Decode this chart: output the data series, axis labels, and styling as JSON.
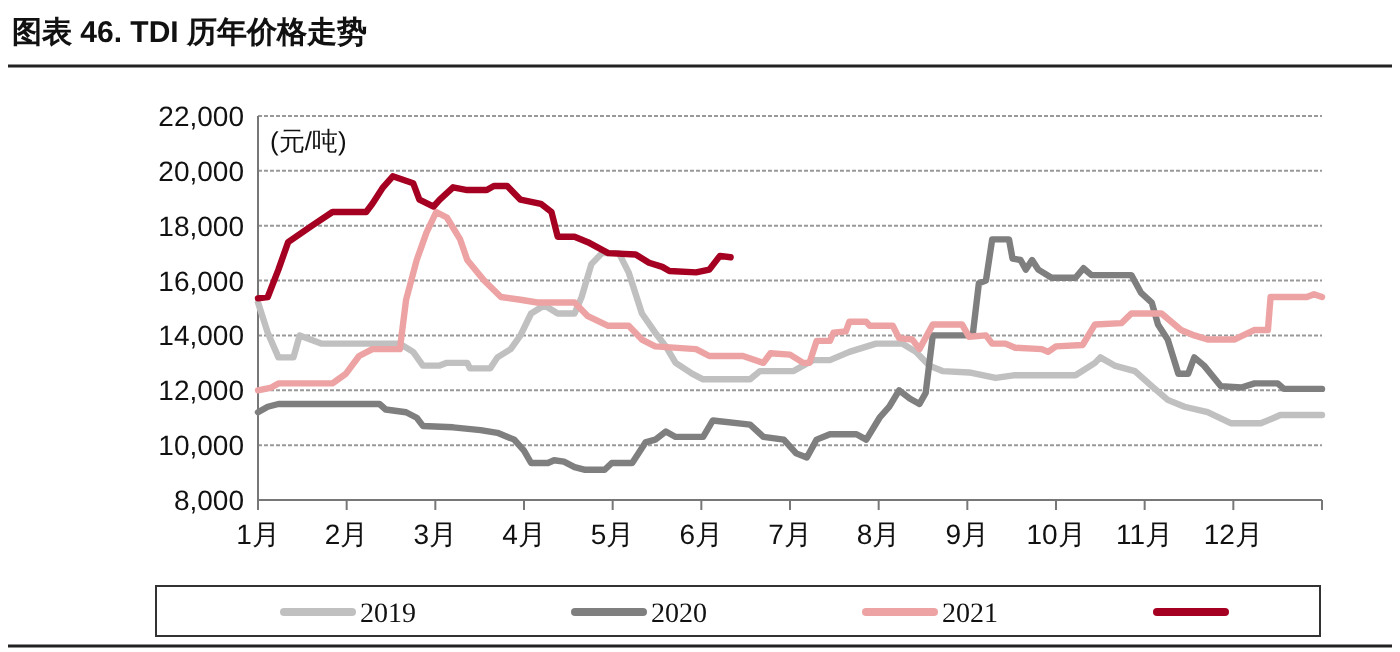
{
  "chart_data": {
    "type": "line",
    "title": "图表 46. TDI 历年价格走势",
    "ylabel": "(元/吨)",
    "xlim": [
      1,
      13
    ],
    "xticks": [
      {
        "value": 1,
        "label": "1月"
      },
      {
        "value": 2,
        "label": "2月"
      },
      {
        "value": 3,
        "label": "3月"
      },
      {
        "value": 4,
        "label": "4月"
      },
      {
        "value": 5,
        "label": "5月"
      },
      {
        "value": 6,
        "label": "6月"
      },
      {
        "value": 7,
        "label": "7月"
      },
      {
        "value": 8,
        "label": "8月"
      },
      {
        "value": 9,
        "label": "9月"
      },
      {
        "value": 10,
        "label": "10月"
      },
      {
        "value": 11,
        "label": "11月"
      },
      {
        "value": 12,
        "label": "12月"
      },
      {
        "value": 13,
        "label": null
      }
    ],
    "ylim": [
      8000,
      22000
    ],
    "yticks": [
      {
        "value": 8000,
        "label": "8,000"
      },
      {
        "value": 10000,
        "label": "10,000"
      },
      {
        "value": 12000,
        "label": "12,000"
      },
      {
        "value": 14000,
        "label": "14,000"
      },
      {
        "value": 16000,
        "label": "16,000"
      },
      {
        "value": 18000,
        "label": "18,000"
      },
      {
        "value": 20000,
        "label": "20,000"
      },
      {
        "value": 22000,
        "label": "22,000"
      }
    ],
    "grid": "y",
    "legend": "bottom",
    "marker": "none",
    "line_style": "solid",
    "series": [
      {
        "name": "2019",
        "color": "#c0c0c0",
        "x": [
          1.0,
          1.11,
          1.23,
          1.4,
          1.47,
          1.72,
          2.6,
          2.75,
          2.86,
          3.05,
          3.13,
          3.36,
          3.39,
          3.62,
          3.7,
          3.85,
          3.96,
          4.08,
          4.23,
          4.38,
          4.57,
          4.65,
          4.76,
          4.88,
          5.07,
          5.18,
          5.33,
          5.48,
          5.6,
          5.71,
          5.9,
          6.02,
          6.55,
          6.66,
          7.04,
          7.26,
          7.45,
          7.67,
          7.97,
          8.27,
          8.42,
          8.57,
          8.72,
          9.02,
          9.32,
          9.54,
          10.22,
          10.44,
          10.5,
          10.66,
          10.89,
          11.08,
          11.26,
          11.45,
          11.71,
          11.97,
          12.31,
          12.46,
          12.53,
          13.0
        ],
        "values": [
          15200,
          14100,
          13200,
          13200,
          14000,
          13700,
          13700,
          13400,
          12900,
          12900,
          13000,
          13000,
          12800,
          12800,
          13200,
          13500,
          14000,
          14800,
          15100,
          14800,
          14800,
          15400,
          16600,
          17000,
          17000,
          16300,
          14800,
          14100,
          13600,
          13000,
          12600,
          12400,
          12400,
          12700,
          12700,
          13100,
          13100,
          13400,
          13700,
          13700,
          13400,
          12900,
          12700,
          12650,
          12450,
          12550,
          12550,
          13000,
          13200,
          12900,
          12700,
          12150,
          11650,
          11400,
          11200,
          10800,
          10800,
          11000,
          11100,
          11100
        ]
      },
      {
        "name": "2020",
        "color": "#7f7f7f",
        "x": [
          1.0,
          1.11,
          1.23,
          2.37,
          2.44,
          2.67,
          2.79,
          2.86,
          3.2,
          3.51,
          3.7,
          3.89,
          4.0,
          4.08,
          4.27,
          4.34,
          4.45,
          4.57,
          4.69,
          4.91,
          4.99,
          5.22,
          5.37,
          5.48,
          5.6,
          5.71,
          6.02,
          6.13,
          6.55,
          6.7,
          6.93,
          7.07,
          7.19,
          7.3,
          7.45,
          7.75,
          7.86,
          8.01,
          8.12,
          8.23,
          8.35,
          8.46,
          8.53,
          8.61,
          9.06,
          9.13,
          9.21,
          9.28,
          9.47,
          9.51,
          9.6,
          9.66,
          9.73,
          9.8,
          9.95,
          10.22,
          10.31,
          10.4,
          10.85,
          10.96,
          11.08,
          11.15,
          11.26,
          11.38,
          11.49,
          11.56,
          11.67,
          11.86,
          12.09,
          12.24,
          12.5,
          12.57,
          13.0
        ],
        "values": [
          11200,
          11400,
          11500,
          11500,
          11300,
          11200,
          11000,
          10700,
          10650,
          10550,
          10450,
          10200,
          9800,
          9350,
          9350,
          9450,
          9400,
          9200,
          9100,
          9100,
          9350,
          9350,
          10100,
          10200,
          10500,
          10300,
          10300,
          10900,
          10750,
          10300,
          10200,
          9700,
          9550,
          10200,
          10400,
          10400,
          10200,
          11000,
          11400,
          12000,
          11700,
          11500,
          11900,
          14000,
          14000,
          15900,
          16000,
          17500,
          17500,
          16800,
          16750,
          16400,
          16750,
          16400,
          16100,
          16100,
          16450,
          16200,
          16200,
          15550,
          15200,
          14400,
          13850,
          12600,
          12600,
          13200,
          12900,
          12150,
          12100,
          12250,
          12250,
          12050,
          12050
        ]
      },
      {
        "name": "2021",
        "color": "#eda3a3",
        "x": [
          1.0,
          1.15,
          1.23,
          1.84,
          1.99,
          2.14,
          2.29,
          2.6,
          2.67,
          2.79,
          2.9,
          3.01,
          3.13,
          3.28,
          3.36,
          3.55,
          3.74,
          3.96,
          4.15,
          4.57,
          4.72,
          4.95,
          5.18,
          5.33,
          5.48,
          5.94,
          6.09,
          6.47,
          6.7,
          6.78,
          7.0,
          7.15,
          7.22,
          7.3,
          7.45,
          7.49,
          7.63,
          7.67,
          7.86,
          7.9,
          8.16,
          8.23,
          8.38,
          8.46,
          8.61,
          8.94,
          9.02,
          9.21,
          9.28,
          9.43,
          9.54,
          9.84,
          9.91,
          10.0,
          10.3,
          10.44,
          10.74,
          10.85,
          11.19,
          11.41,
          11.56,
          11.71,
          12.01,
          12.24,
          12.39,
          12.42,
          12.83,
          12.91,
          13.0
        ],
        "values": [
          12000,
          12100,
          12250,
          12250,
          12600,
          13250,
          13500,
          13500,
          15300,
          16750,
          17750,
          18500,
          18300,
          17500,
          16750,
          16000,
          15400,
          15300,
          15200,
          15200,
          14700,
          14350,
          14350,
          13850,
          13600,
          13500,
          13250,
          13250,
          13000,
          13350,
          13300,
          13000,
          13000,
          13800,
          13800,
          14100,
          14150,
          14500,
          14500,
          14350,
          14350,
          13900,
          13850,
          13500,
          14400,
          14400,
          13950,
          14000,
          13700,
          13700,
          13550,
          13500,
          13400,
          13600,
          13650,
          14400,
          14450,
          14800,
          14800,
          14200,
          14000,
          13850,
          13850,
          14200,
          14200,
          15400,
          15400,
          15500,
          15400
        ]
      },
      {
        "color": "#a50021",
        "x": [
          1.0,
          1.11,
          1.23,
          1.34,
          1.61,
          1.84,
          2.22,
          2.29,
          2.41,
          2.52,
          2.75,
          2.82,
          2.98,
          3.05,
          3.2,
          3.36,
          3.58,
          3.66,
          3.81,
          3.96,
          4.19,
          4.31,
          4.38,
          4.57,
          4.72,
          4.95,
          5.26,
          5.41,
          5.56,
          5.64,
          5.94,
          6.09,
          6.21,
          6.33
        ],
        "values": [
          15350,
          15400,
          16400,
          17400,
          18000,
          18500,
          18500,
          18800,
          19400,
          19800,
          19550,
          18950,
          18700,
          18950,
          19400,
          19300,
          19300,
          19450,
          19450,
          18950,
          18800,
          18500,
          17600,
          17600,
          17400,
          17000,
          16950,
          16650,
          16500,
          16350,
          16300,
          16400,
          16900,
          16850
        ]
      }
    ]
  }
}
